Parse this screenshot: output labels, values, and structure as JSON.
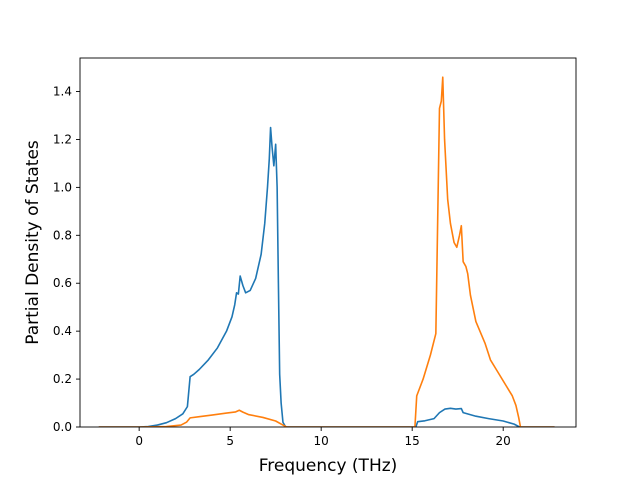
{
  "chart_data": {
    "type": "line",
    "title": "",
    "xlabel": "Frequency (THz)",
    "ylabel": "Partial Density of States",
    "xlim": [
      -3.25,
      24.0
    ],
    "ylim": [
      0.0,
      1.54
    ],
    "x_ticks": [
      0,
      5,
      10,
      15,
      20
    ],
    "x_tick_labels": [
      "0",
      "5",
      "10",
      "15",
      "20"
    ],
    "y_ticks": [
      0.0,
      0.2,
      0.4,
      0.6,
      0.8,
      1.0,
      1.2,
      1.4
    ],
    "y_tick_labels": [
      "0.0",
      "0.2",
      "0.4",
      "0.6",
      "0.8",
      "1.0",
      "1.2",
      "1.4"
    ],
    "grid": false,
    "legend": "none",
    "series": [
      {
        "color": "#1f77b4",
        "points": [
          [
            -2.2,
            0.0
          ],
          [
            0.0,
            0.0
          ],
          [
            0.5,
            0.002
          ],
          [
            1.0,
            0.008
          ],
          [
            1.5,
            0.018
          ],
          [
            2.0,
            0.035
          ],
          [
            2.4,
            0.055
          ],
          [
            2.65,
            0.085
          ],
          [
            2.8,
            0.21
          ],
          [
            3.0,
            0.22
          ],
          [
            3.3,
            0.24
          ],
          [
            3.8,
            0.28
          ],
          [
            4.3,
            0.33
          ],
          [
            4.8,
            0.4
          ],
          [
            5.1,
            0.46
          ],
          [
            5.25,
            0.51
          ],
          [
            5.35,
            0.56
          ],
          [
            5.45,
            0.555
          ],
          [
            5.55,
            0.63
          ],
          [
            5.7,
            0.59
          ],
          [
            5.85,
            0.56
          ],
          [
            6.1,
            0.57
          ],
          [
            6.4,
            0.62
          ],
          [
            6.7,
            0.72
          ],
          [
            6.9,
            0.85
          ],
          [
            7.05,
            1.0
          ],
          [
            7.15,
            1.12
          ],
          [
            7.22,
            1.25
          ],
          [
            7.3,
            1.17
          ],
          [
            7.4,
            1.09
          ],
          [
            7.5,
            1.18
          ],
          [
            7.58,
            1.0
          ],
          [
            7.65,
            0.6
          ],
          [
            7.72,
            0.22
          ],
          [
            7.8,
            0.1
          ],
          [
            7.9,
            0.02
          ],
          [
            8.05,
            0.0
          ],
          [
            15.2,
            0.0
          ],
          [
            15.3,
            0.022
          ],
          [
            15.7,
            0.026
          ],
          [
            16.2,
            0.035
          ],
          [
            16.5,
            0.06
          ],
          [
            16.8,
            0.075
          ],
          [
            17.1,
            0.078
          ],
          [
            17.4,
            0.075
          ],
          [
            17.7,
            0.077
          ],
          [
            17.8,
            0.06
          ],
          [
            18.5,
            0.045
          ],
          [
            19.2,
            0.035
          ],
          [
            20.0,
            0.025
          ],
          [
            20.6,
            0.012
          ],
          [
            20.9,
            0.0
          ],
          [
            22.8,
            0.0
          ]
        ]
      },
      {
        "color": "#ff7f0e",
        "points": [
          [
            -2.2,
            0.0
          ],
          [
            0.0,
            0.0
          ],
          [
            1.5,
            0.002
          ],
          [
            2.3,
            0.008
          ],
          [
            2.6,
            0.02
          ],
          [
            2.8,
            0.038
          ],
          [
            3.3,
            0.043
          ],
          [
            4.0,
            0.05
          ],
          [
            4.8,
            0.058
          ],
          [
            5.3,
            0.063
          ],
          [
            5.5,
            0.07
          ],
          [
            5.7,
            0.062
          ],
          [
            6.0,
            0.052
          ],
          [
            6.8,
            0.04
          ],
          [
            7.5,
            0.025
          ],
          [
            7.9,
            0.008
          ],
          [
            8.1,
            0.0
          ],
          [
            15.15,
            0.0
          ],
          [
            15.25,
            0.13
          ],
          [
            15.6,
            0.2
          ],
          [
            16.0,
            0.3
          ],
          [
            16.3,
            0.39
          ],
          [
            16.5,
            1.33
          ],
          [
            16.6,
            1.36
          ],
          [
            16.68,
            1.46
          ],
          [
            16.78,
            1.2
          ],
          [
            16.95,
            0.95
          ],
          [
            17.1,
            0.85
          ],
          [
            17.3,
            0.77
          ],
          [
            17.45,
            0.75
          ],
          [
            17.6,
            0.8
          ],
          [
            17.7,
            0.84
          ],
          [
            17.8,
            0.69
          ],
          [
            17.95,
            0.67
          ],
          [
            18.05,
            0.64
          ],
          [
            18.2,
            0.55
          ],
          [
            18.5,
            0.44
          ],
          [
            19.0,
            0.35
          ],
          [
            19.3,
            0.28
          ],
          [
            19.7,
            0.23
          ],
          [
            20.1,
            0.18
          ],
          [
            20.5,
            0.13
          ],
          [
            20.7,
            0.09
          ],
          [
            20.85,
            0.04
          ],
          [
            20.95,
            0.0
          ],
          [
            22.8,
            0.0
          ]
        ]
      }
    ]
  }
}
